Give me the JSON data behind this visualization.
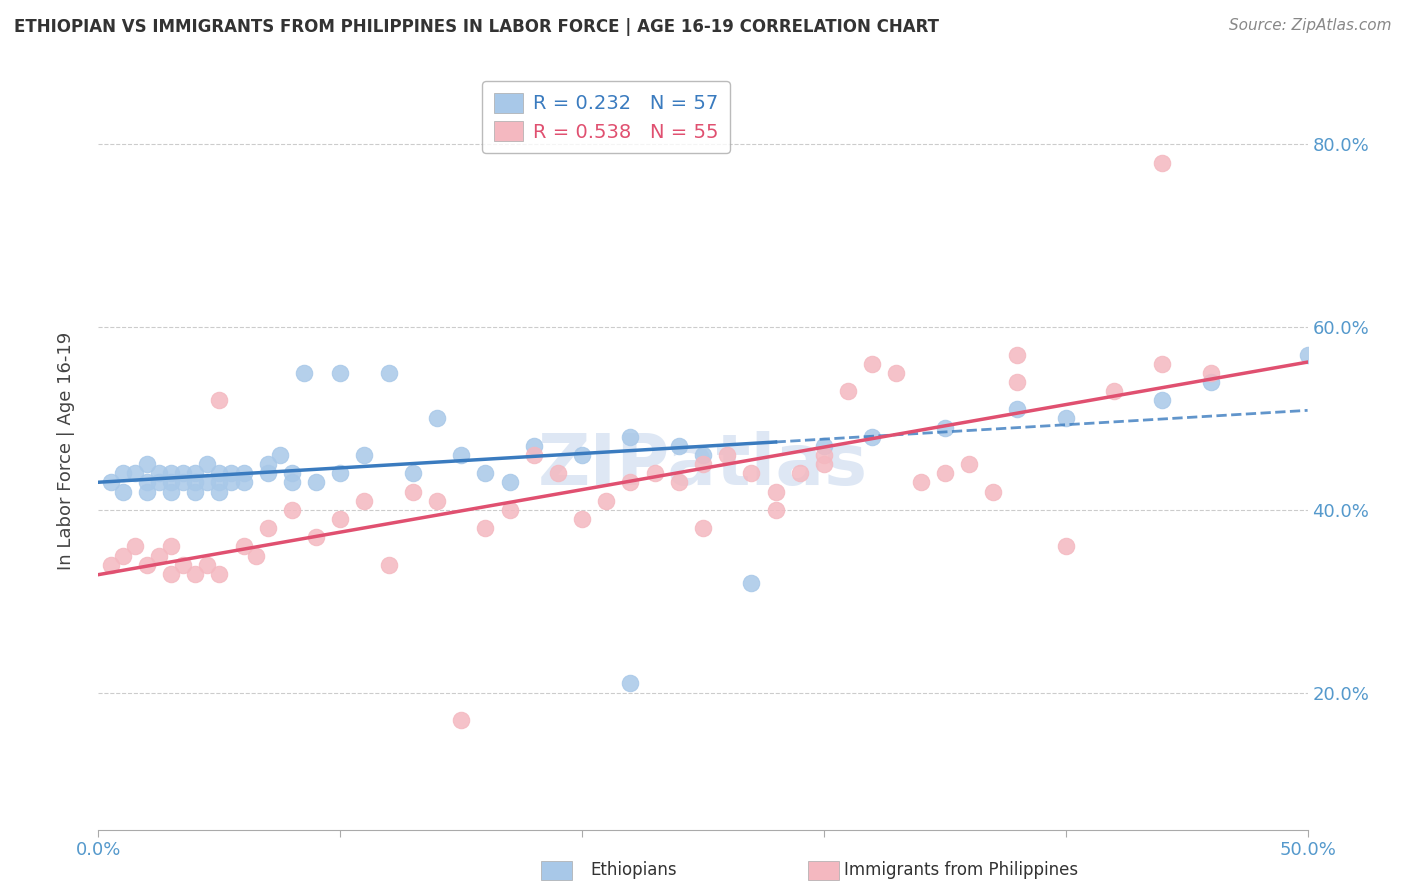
{
  "title": "ETHIOPIAN VS IMMIGRANTS FROM PHILIPPINES IN LABOR FORCE | AGE 16-19 CORRELATION CHART",
  "source": "Source: ZipAtlas.com",
  "ylabel": "In Labor Force | Age 16-19",
  "xlim": [
    0.0,
    0.5
  ],
  "ylim": [
    0.05,
    0.88
  ],
  "right_yticks": [
    0.2,
    0.4,
    0.6,
    0.8
  ],
  "right_yticklabels": [
    "20.0%",
    "40.0%",
    "60.0%",
    "80.0%"
  ],
  "legend_r1": "R = 0.232",
  "legend_n1": "N = 57",
  "legend_r2": "R = 0.538",
  "legend_n2": "N = 55",
  "color_ethiopian": "#a8c8e8",
  "color_philippines": "#f4b8c0",
  "color_line_ethiopian": "#3a7bbf",
  "color_line_philippines": "#e05070",
  "ethiopian_x": [
    0.005,
    0.01,
    0.01,
    0.015,
    0.02,
    0.02,
    0.02,
    0.025,
    0.025,
    0.03,
    0.03,
    0.03,
    0.035,
    0.035,
    0.04,
    0.04,
    0.04,
    0.045,
    0.045,
    0.05,
    0.05,
    0.05,
    0.055,
    0.055,
    0.06,
    0.06,
    0.07,
    0.07,
    0.075,
    0.08,
    0.08,
    0.085,
    0.09,
    0.1,
    0.1,
    0.11,
    0.12,
    0.13,
    0.14,
    0.15,
    0.16,
    0.17,
    0.18,
    0.2,
    0.22,
    0.22,
    0.24,
    0.25,
    0.27,
    0.3,
    0.32,
    0.35,
    0.38,
    0.4,
    0.44,
    0.46,
    0.5
  ],
  "ethiopian_y": [
    0.43,
    0.44,
    0.42,
    0.44,
    0.43,
    0.45,
    0.42,
    0.44,
    0.43,
    0.43,
    0.44,
    0.42,
    0.44,
    0.43,
    0.44,
    0.43,
    0.42,
    0.45,
    0.43,
    0.44,
    0.43,
    0.42,
    0.44,
    0.43,
    0.44,
    0.43,
    0.45,
    0.44,
    0.46,
    0.44,
    0.43,
    0.55,
    0.43,
    0.44,
    0.55,
    0.46,
    0.55,
    0.44,
    0.5,
    0.46,
    0.44,
    0.43,
    0.47,
    0.46,
    0.48,
    0.21,
    0.47,
    0.46,
    0.32,
    0.47,
    0.48,
    0.49,
    0.51,
    0.5,
    0.52,
    0.54,
    0.57
  ],
  "philippines_x": [
    0.005,
    0.01,
    0.015,
    0.02,
    0.025,
    0.03,
    0.03,
    0.035,
    0.04,
    0.045,
    0.05,
    0.05,
    0.06,
    0.065,
    0.07,
    0.08,
    0.09,
    0.1,
    0.11,
    0.12,
    0.13,
    0.14,
    0.15,
    0.16,
    0.17,
    0.18,
    0.19,
    0.2,
    0.21,
    0.22,
    0.23,
    0.24,
    0.25,
    0.26,
    0.27,
    0.28,
    0.29,
    0.3,
    0.31,
    0.32,
    0.33,
    0.34,
    0.35,
    0.36,
    0.37,
    0.38,
    0.4,
    0.42,
    0.44,
    0.46,
    0.3,
    0.28,
    0.25,
    0.38,
    0.44
  ],
  "philippines_y": [
    0.34,
    0.35,
    0.36,
    0.34,
    0.35,
    0.33,
    0.36,
    0.34,
    0.33,
    0.34,
    0.33,
    0.52,
    0.36,
    0.35,
    0.38,
    0.4,
    0.37,
    0.39,
    0.41,
    0.34,
    0.42,
    0.41,
    0.17,
    0.38,
    0.4,
    0.46,
    0.44,
    0.39,
    0.41,
    0.43,
    0.44,
    0.43,
    0.45,
    0.46,
    0.44,
    0.4,
    0.44,
    0.46,
    0.53,
    0.56,
    0.55,
    0.43,
    0.44,
    0.45,
    0.42,
    0.54,
    0.36,
    0.53,
    0.56,
    0.55,
    0.45,
    0.42,
    0.38,
    0.57,
    0.78
  ]
}
